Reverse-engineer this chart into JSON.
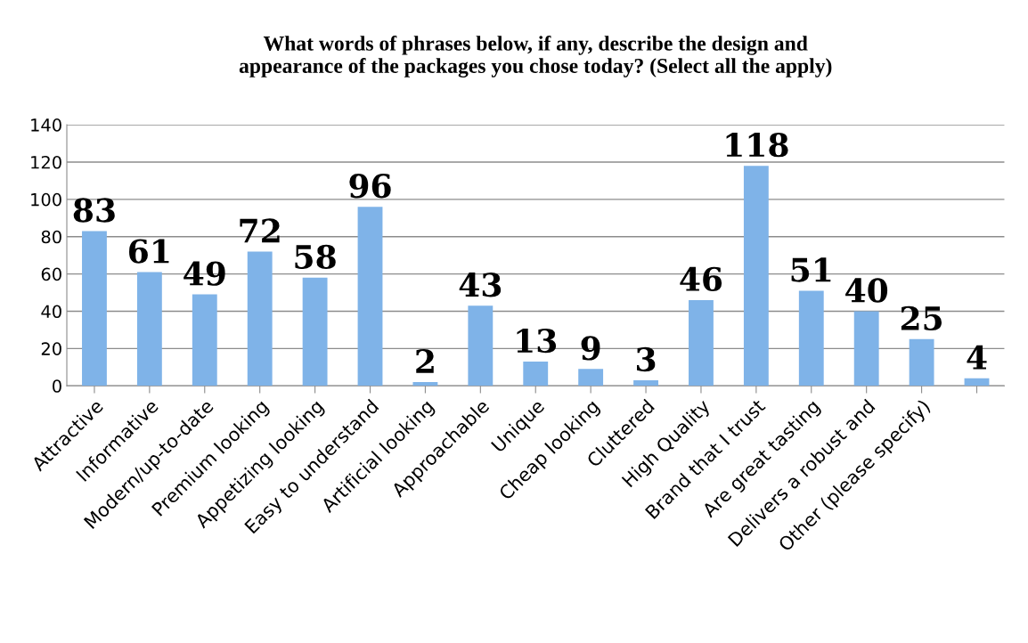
{
  "chart_data": {
    "type": "bar",
    "title": "What words of phrases below, if any, describe the design and\nappearance of the packages you chose today? (Select all the apply)",
    "categories": [
      "Attractive",
      "Informative",
      "Modern/up-to-date",
      "Premium looking",
      "Appetizing looking",
      "Easy to understand",
      "Artificial looking",
      "Approachable",
      "Unique",
      "Cheap looking",
      "Cluttered",
      "High Quality",
      "Brand that I trust",
      "Are great tasting",
      "Delivers a robust and",
      "Other (please specify)",
      null
    ],
    "values": [
      83,
      61,
      49,
      72,
      58,
      96,
      2,
      43,
      13,
      9,
      3,
      46,
      118,
      51,
      40,
      25,
      4
    ],
    "color": "#7fb3e8",
    "ylim": [
      0,
      140
    ],
    "yticks": [
      0,
      20,
      40,
      60,
      80,
      100,
      120,
      140
    ],
    "grid": "y",
    "data_labels": true,
    "legend": false
  }
}
